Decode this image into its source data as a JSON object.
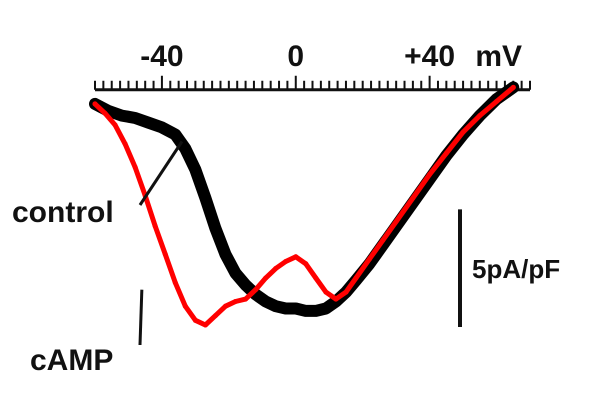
{
  "chart_data": {
    "type": "line",
    "title": "",
    "xlabel": "",
    "ylabel": "",
    "x_unit_label": "mV",
    "xlim": [
      -60,
      70
    ],
    "ylim": [
      -10,
      0.5
    ],
    "x_ticks": [
      {
        "value": -40,
        "label": "-40"
      },
      {
        "value": 0,
        "label": "0"
      },
      {
        "value": 40,
        "label": "+40"
      }
    ],
    "minor_tick_step": 2.5,
    "scale_bar": {
      "label": "5pA/pF",
      "value": 5
    },
    "grid": false,
    "series": [
      {
        "name": "control",
        "color": "#000000",
        "points": [
          [
            -60,
            -0.6
          ],
          [
            -56,
            -0.9
          ],
          [
            -52,
            -1.1
          ],
          [
            -48,
            -1.2
          ],
          [
            -44,
            -1.4
          ],
          [
            -40,
            -1.6
          ],
          [
            -36,
            -1.9
          ],
          [
            -33,
            -2.5
          ],
          [
            -30,
            -3.4
          ],
          [
            -27,
            -4.6
          ],
          [
            -24,
            -5.9
          ],
          [
            -21,
            -7.0
          ],
          [
            -18,
            -7.8
          ],
          [
            -15,
            -8.3
          ],
          [
            -12,
            -8.7
          ],
          [
            -9,
            -9.0
          ],
          [
            -6,
            -9.2
          ],
          [
            -3,
            -9.3
          ],
          [
            0,
            -9.3
          ],
          [
            3,
            -9.4
          ],
          [
            6,
            -9.4
          ],
          [
            9,
            -9.3
          ],
          [
            12,
            -9.0
          ],
          [
            15,
            -8.6
          ],
          [
            18,
            -8.1
          ],
          [
            22,
            -7.4
          ],
          [
            26,
            -6.6
          ],
          [
            30,
            -5.8
          ],
          [
            35,
            -4.8
          ],
          [
            40,
            -3.8
          ],
          [
            45,
            -2.8
          ],
          [
            50,
            -1.9
          ],
          [
            55,
            -1.1
          ],
          [
            60,
            -0.4
          ],
          [
            65,
            0.1
          ]
        ]
      },
      {
        "name": "cAMP",
        "color": "#ff0000",
        "points": [
          [
            -60,
            -0.6
          ],
          [
            -57,
            -1.0
          ],
          [
            -54,
            -1.5
          ],
          [
            -51,
            -2.3
          ],
          [
            -48,
            -3.3
          ],
          [
            -45,
            -4.5
          ],
          [
            -42,
            -5.8
          ],
          [
            -39,
            -7.0
          ],
          [
            -36,
            -8.2
          ],
          [
            -33,
            -9.2
          ],
          [
            -30,
            -9.8
          ],
          [
            -27,
            -10.0
          ],
          [
            -24,
            -9.6
          ],
          [
            -21,
            -9.2
          ],
          [
            -18,
            -9.0
          ],
          [
            -15,
            -8.9
          ],
          [
            -12,
            -8.5
          ],
          [
            -9,
            -8.0
          ],
          [
            -6,
            -7.6
          ],
          [
            -3,
            -7.3
          ],
          [
            0,
            -7.1
          ],
          [
            3,
            -7.4
          ],
          [
            6,
            -8.0
          ],
          [
            9,
            -8.6
          ],
          [
            12,
            -8.9
          ],
          [
            15,
            -8.6
          ],
          [
            18,
            -8.0
          ],
          [
            22,
            -7.2
          ],
          [
            26,
            -6.4
          ],
          [
            30,
            -5.6
          ],
          [
            35,
            -4.6
          ],
          [
            40,
            -3.6
          ],
          [
            45,
            -2.7
          ],
          [
            50,
            -1.8
          ],
          [
            55,
            -1.1
          ],
          [
            60,
            -0.5
          ],
          [
            65,
            0.1
          ]
        ]
      }
    ]
  }
}
